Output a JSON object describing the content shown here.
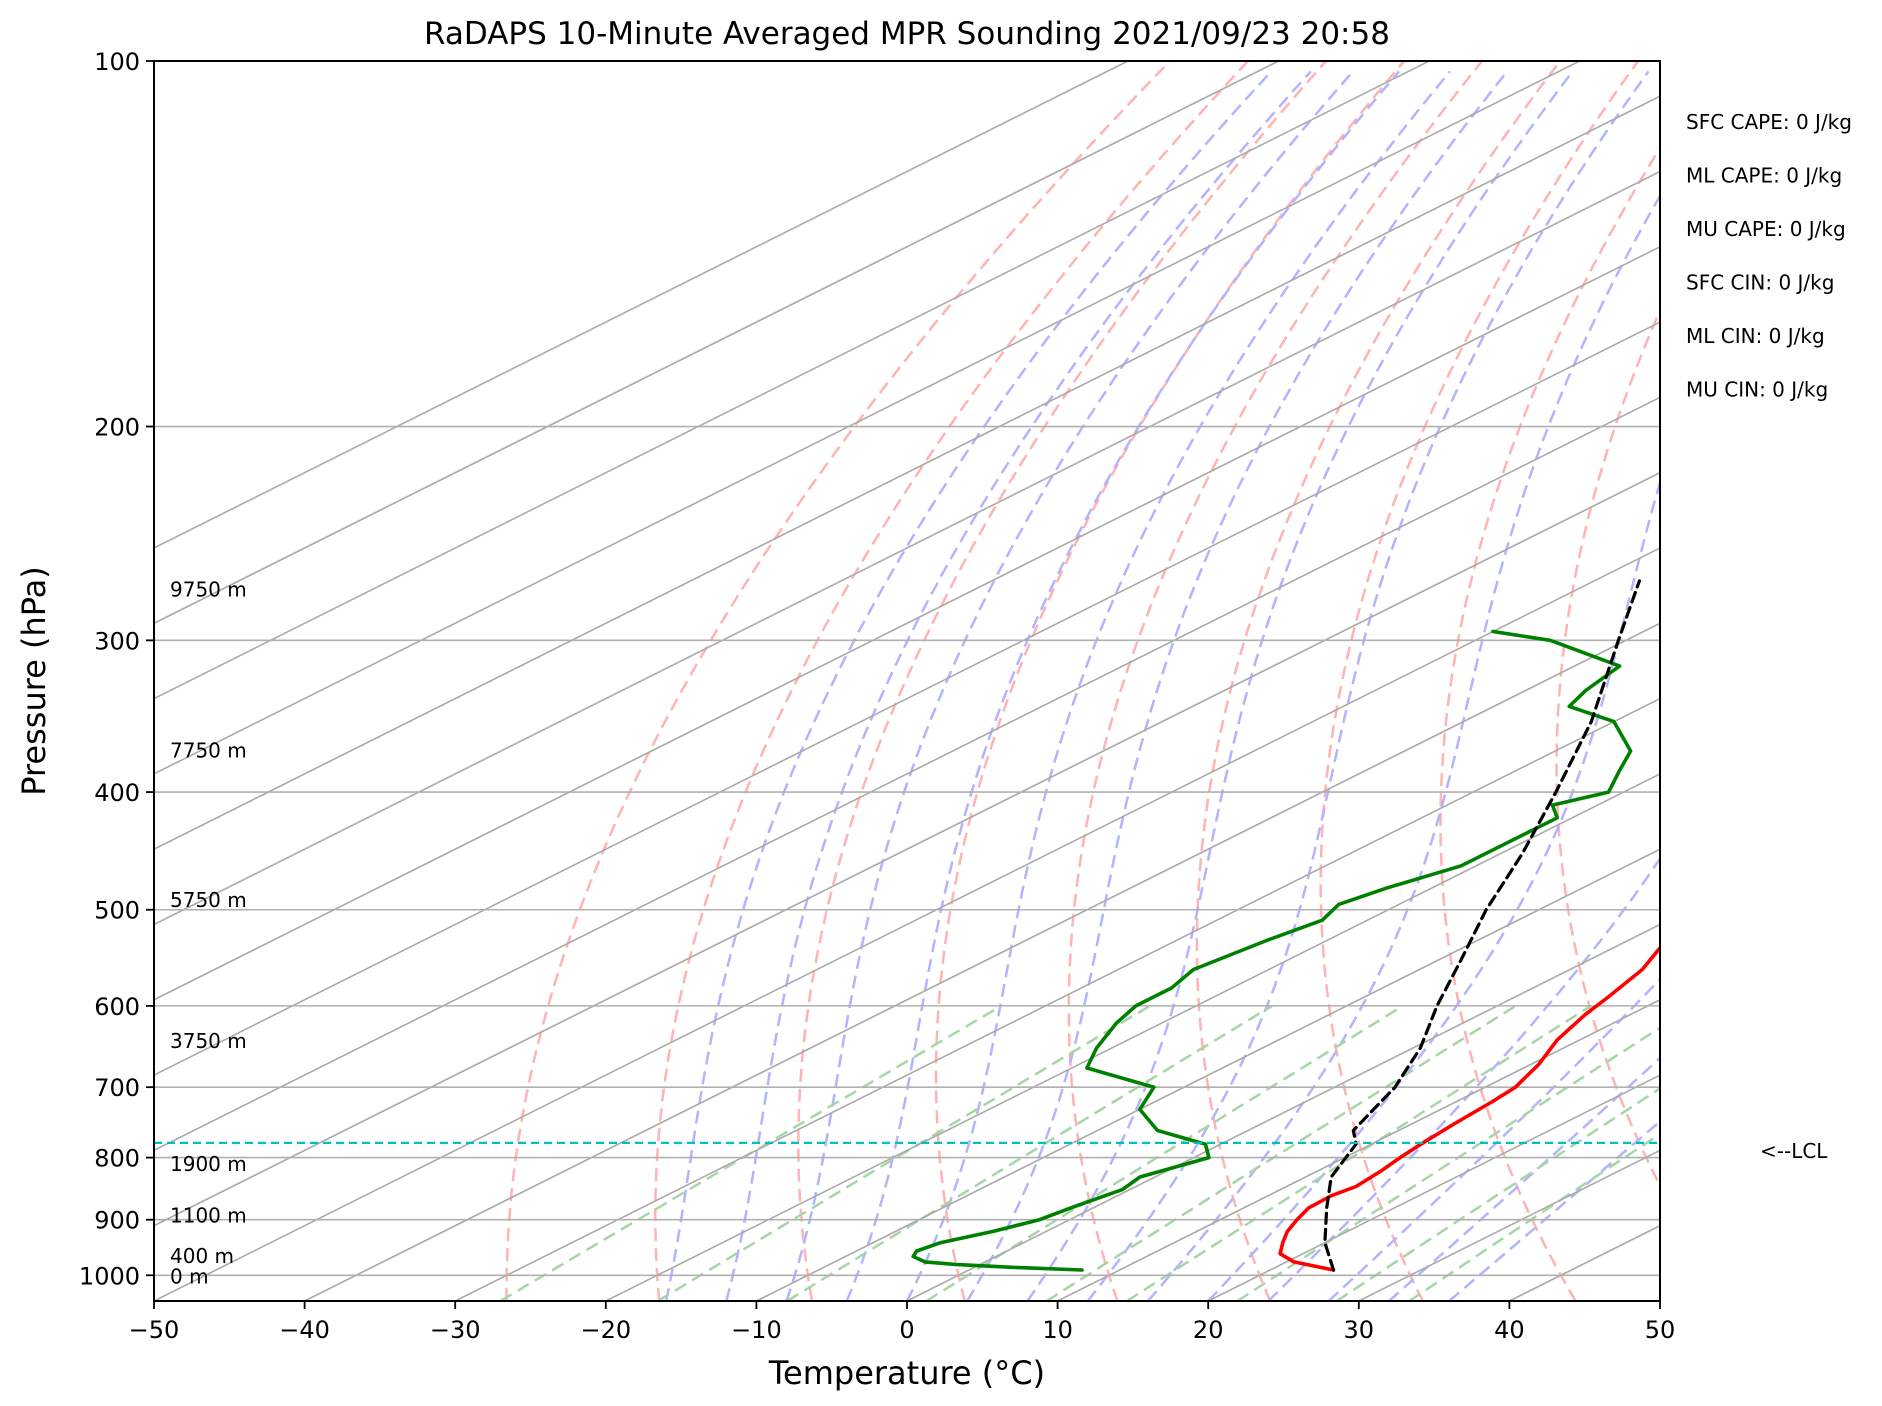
{
  "chart_data": {
    "type": "line",
    "title": "RaDAPS 10-Minute Averaged MPR Sounding 2021/09/23 20:58",
    "xlabel": "Temperature (°C)",
    "ylabel": "Pressure (hPa)",
    "xlim": [
      -50,
      50
    ],
    "ylim": [
      1050,
      100
    ],
    "y_scale": "log",
    "x_ticks": [
      -50,
      -40,
      -30,
      -20,
      -10,
      0,
      10,
      20,
      30,
      40,
      50
    ],
    "x_tick_labels": [
      "−50",
      "−40",
      "−30",
      "−20",
      "−10",
      "0",
      "10",
      "20",
      "30",
      "40",
      "50"
    ],
    "y_ticks": [
      100,
      200,
      300,
      400,
      500,
      600,
      700,
      800,
      900,
      1000
    ],
    "y_tick_labels": [
      "100",
      "200",
      "300",
      "400",
      "500",
      "600",
      "700",
      "800",
      "900",
      "1000"
    ],
    "grid": true,
    "series": [
      {
        "color": "#ff0000",
        "values": [
          [
            990,
            24.2
          ],
          [
            975,
            20.5
          ],
          [
            960,
            18.5
          ],
          [
            940,
            17.2
          ],
          [
            920,
            16.0
          ],
          [
            900,
            15.1
          ],
          [
            880,
            14.3
          ],
          [
            860,
            14.2
          ],
          [
            845,
            14.6
          ],
          [
            820,
            14.2
          ],
          [
            800,
            13.7
          ],
          [
            780,
            13.3
          ],
          [
            750,
            12.8
          ],
          [
            720,
            12.4
          ],
          [
            700,
            12.0
          ],
          [
            670,
            10.5
          ],
          [
            640,
            8.5
          ],
          [
            610,
            7.0
          ],
          [
            590,
            6.2
          ],
          [
            560,
            4.8
          ],
          [
            540,
            3.3
          ],
          [
            520,
            1.8
          ],
          [
            490,
            -0.5
          ],
          [
            470,
            -2.0
          ],
          [
            450,
            -3.0
          ],
          [
            420,
            -6.0
          ],
          [
            400,
            -8.0
          ],
          [
            380,
            -10.0
          ],
          [
            360,
            -12.0
          ],
          [
            340,
            -14.0
          ],
          [
            320,
            -15.5
          ],
          [
            300,
            -17.0
          ],
          [
            285,
            -18.5
          ],
          [
            272,
            -20.0
          ],
          [
            265,
            -21.0
          ]
        ]
      },
      {
        "color": "#008000",
        "values": [
          [
            990,
            7.5
          ],
          [
            985,
            2.5
          ],
          [
            980,
            -1.5
          ],
          [
            975,
            -4.0
          ],
          [
            965,
            -5.5
          ],
          [
            955,
            -6.0
          ],
          [
            940,
            -5.5
          ],
          [
            920,
            -3.5
          ],
          [
            900,
            -2.0
          ],
          [
            880,
            -1.5
          ],
          [
            850,
            -0.5
          ],
          [
            830,
            -1.0
          ],
          [
            815,
            0.0
          ],
          [
            800,
            1.0
          ],
          [
            780,
            -1.0
          ],
          [
            760,
            -6.0
          ],
          [
            730,
            -10.0
          ],
          [
            700,
            -12.0
          ],
          [
            675,
            -19.0
          ],
          [
            650,
            -21.0
          ],
          [
            620,
            -23.0
          ],
          [
            600,
            -24.0
          ],
          [
            580,
            -24.0
          ],
          [
            560,
            -25.0
          ],
          [
            530,
            -24.0
          ],
          [
            510,
            -23.0
          ],
          [
            495,
            -24.0
          ],
          [
            480,
            -23.0
          ],
          [
            460,
            -21.0
          ],
          [
            440,
            -21.0
          ],
          [
            420,
            -21.0
          ],
          [
            410,
            -23.0
          ],
          [
            400,
            -21.0
          ],
          [
            385,
            -23.0
          ],
          [
            370,
            -25.0
          ],
          [
            350,
            -30.0
          ],
          [
            340,
            -35.0
          ],
          [
            330,
            -36.0
          ],
          [
            315,
            -37.0
          ],
          [
            300,
            -45.0
          ],
          [
            295,
            -50.0
          ]
        ]
      },
      {
        "color": "#000000",
        "dashed": true,
        "values": [
          [
            990,
            24.2
          ],
          [
            940,
            20.0
          ],
          [
            880,
            15.5
          ],
          [
            830,
            11.7
          ],
          [
            780,
            9.0
          ],
          [
            760,
            7.0
          ],
          [
            700,
            4.0
          ],
          [
            650,
            0.5
          ],
          [
            600,
            -4.0
          ],
          [
            550,
            -8.5
          ],
          [
            500,
            -13.5
          ],
          [
            450,
            -18.5
          ],
          [
            400,
            -24.5
          ],
          [
            350,
            -31.5
          ],
          [
            300,
            -40.5
          ],
          [
            268,
            -47.0
          ]
        ]
      }
    ],
    "lcl": {
      "pressure": 778,
      "label": "<--LCL",
      "color": "#00bfbf"
    },
    "height_labels": [
      {
        "label": "9750 m",
        "pressure": 272
      },
      {
        "label": "7750 m",
        "pressure": 369
      },
      {
        "label": "5750 m",
        "pressure": 490
      },
      {
        "label": "3750 m",
        "pressure": 640
      },
      {
        "label": "1900 m",
        "pressure": 808
      },
      {
        "label": "1100 m",
        "pressure": 891
      },
      {
        "label": "400 m",
        "pressure": 962
      },
      {
        "label": "0 m",
        "pressure": 1000
      }
    ],
    "annotations": [
      "SFC CAPE: 0 J/kg",
      "ML CAPE: 0 J/kg",
      "MU CAPE: 0 J/kg",
      "SFC CIN: 0 J/kg",
      "ML CIN: 0 J/kg",
      "MU CIN: 0 J/kg"
    ],
    "reference_lines": {
      "isotherm_color": "#aaaaaa",
      "dry_adiabat_color": "#ffb3b3",
      "moist_adiabat_color": "#b3b3ff",
      "mixing_ratio_color": "#a8d5a8"
    }
  }
}
